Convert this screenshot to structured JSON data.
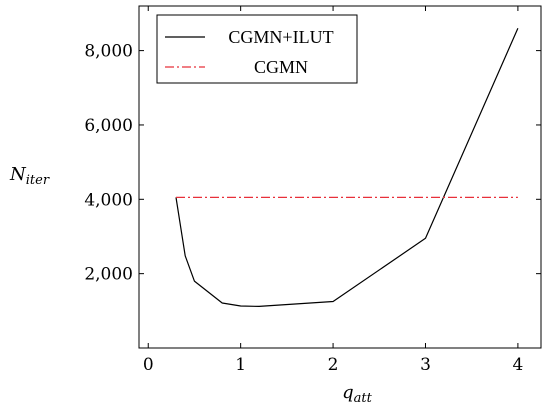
{
  "chart_data": {
    "type": "line",
    "xlabel": "q_att",
    "xlabel_main": "q",
    "xlabel_sub": "att",
    "ylabel": "N_iter",
    "ylabel_main": "N",
    "ylabel_sub": "iter",
    "xlim": [
      -0.1,
      4.25
    ],
    "ylim": [
      0,
      9200
    ],
    "xticks": [
      0,
      1,
      2,
      3,
      4
    ],
    "xtick_labels": [
      "0",
      "1",
      "2",
      "3",
      "4"
    ],
    "yticks": [
      2000,
      4000,
      6000,
      8000
    ],
    "ytick_labels": [
      "2,000",
      "4,000",
      "6,000",
      "8,000"
    ],
    "grid": false,
    "legend_position": "top-left",
    "series": [
      {
        "name": "CGMN+ILUT",
        "color": "#000000",
        "style": "solid",
        "x": [
          0.3,
          0.4,
          0.5,
          0.8,
          1.0,
          1.2,
          2.0,
          3.0,
          4.0
        ],
        "y": [
          4050,
          2480,
          1800,
          1210,
          1130,
          1120,
          1250,
          2950,
          8600
        ]
      },
      {
        "name": "CGMN",
        "color": "#e8303a",
        "style": "dashdot",
        "x": [
          0.3,
          4.0
        ],
        "y": [
          4050,
          4050
        ]
      }
    ]
  }
}
